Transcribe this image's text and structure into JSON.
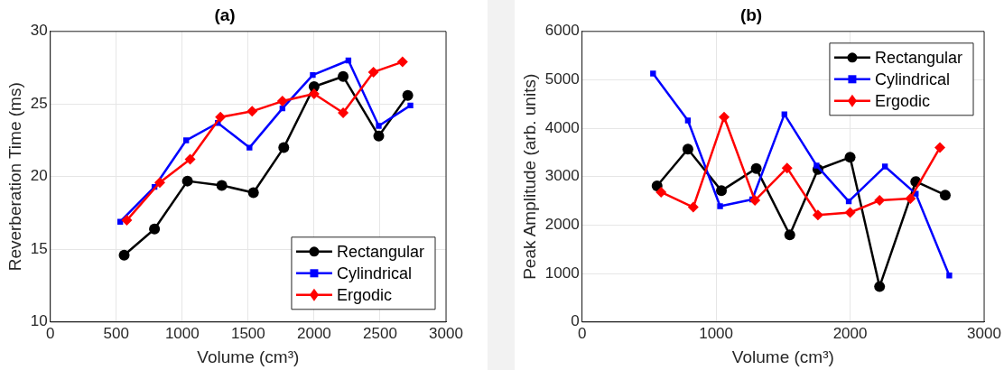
{
  "chart_data": [
    {
      "type": "line",
      "title": "(a)",
      "xlabel": "Volume (cm³)",
      "ylabel": "Reverberation Time (ms)",
      "xlim": [
        0,
        3000
      ],
      "xticks": [
        0,
        500,
        1000,
        1500,
        2000,
        2500,
        3000
      ],
      "ylim": [
        10,
        30
      ],
      "yticks": [
        10,
        15,
        20,
        25,
        30
      ],
      "grid": true,
      "legend": "bottom right",
      "line_style": "solid",
      "series": [
        {
          "name": "Rectangular",
          "color": "#000000",
          "marker": "circle",
          "x": [
            560,
            790,
            1040,
            1300,
            1540,
            1770,
            2000,
            2220,
            2490,
            2710
          ],
          "values": [
            14.6,
            16.4,
            19.7,
            19.4,
            18.9,
            22.0,
            26.2,
            26.9,
            22.8,
            25.6
          ]
        },
        {
          "name": "Cylindrical",
          "color": "#0000ff",
          "marker": "square",
          "x": [
            530,
            790,
            1030,
            1270,
            1510,
            1760,
            1990,
            2260,
            2490,
            2730
          ],
          "values": [
            16.9,
            19.3,
            22.5,
            23.7,
            22.0,
            24.7,
            27.0,
            28.0,
            23.5,
            24.9
          ]
        },
        {
          "name": "Ergodic",
          "color": "#ff0000",
          "marker": "diamond",
          "x": [
            580,
            830,
            1060,
            1290,
            1530,
            1760,
            2000,
            2220,
            2450,
            2670
          ],
          "values": [
            17.0,
            19.6,
            21.2,
            24.1,
            24.5,
            25.2,
            25.7,
            24.4,
            27.2,
            27.9
          ]
        }
      ]
    },
    {
      "type": "line",
      "title": "(b)",
      "xlabel": "Volume (cm³)",
      "ylabel": "Peak Amplitude (arb. units)",
      "xlim": [
        0,
        3000
      ],
      "xticks": [
        0,
        1000,
        2000,
        3000
      ],
      "ylim": [
        0,
        6000
      ],
      "yticks": [
        0,
        1000,
        2000,
        3000,
        4000,
        5000,
        6000
      ],
      "grid": true,
      "legend": "top right",
      "line_style": "solid",
      "series": [
        {
          "name": "Rectangular",
          "color": "#000000",
          "marker": "circle",
          "x": [
            560,
            790,
            1040,
            1300,
            1550,
            1760,
            2000,
            2220,
            2490,
            2710
          ],
          "values": [
            2810,
            3570,
            2710,
            3170,
            1800,
            3150,
            3400,
            730,
            2900,
            2620
          ]
        },
        {
          "name": "Cylindrical",
          "color": "#0000ff",
          "marker": "square",
          "x": [
            530,
            790,
            1030,
            1270,
            1510,
            1750,
            1990,
            2260,
            2490,
            2740
          ],
          "values": [
            5130,
            4160,
            2390,
            2530,
            4290,
            3230,
            2490,
            3210,
            2650,
            960
          ]
        },
        {
          "name": "Ergodic",
          "color": "#ff0000",
          "marker": "diamond",
          "x": [
            590,
            830,
            1060,
            1290,
            1530,
            1760,
            2000,
            2220,
            2450,
            2670
          ],
          "values": [
            2680,
            2370,
            4230,
            2510,
            3180,
            2210,
            2260,
            2510,
            2550,
            3600
          ]
        }
      ]
    }
  ]
}
